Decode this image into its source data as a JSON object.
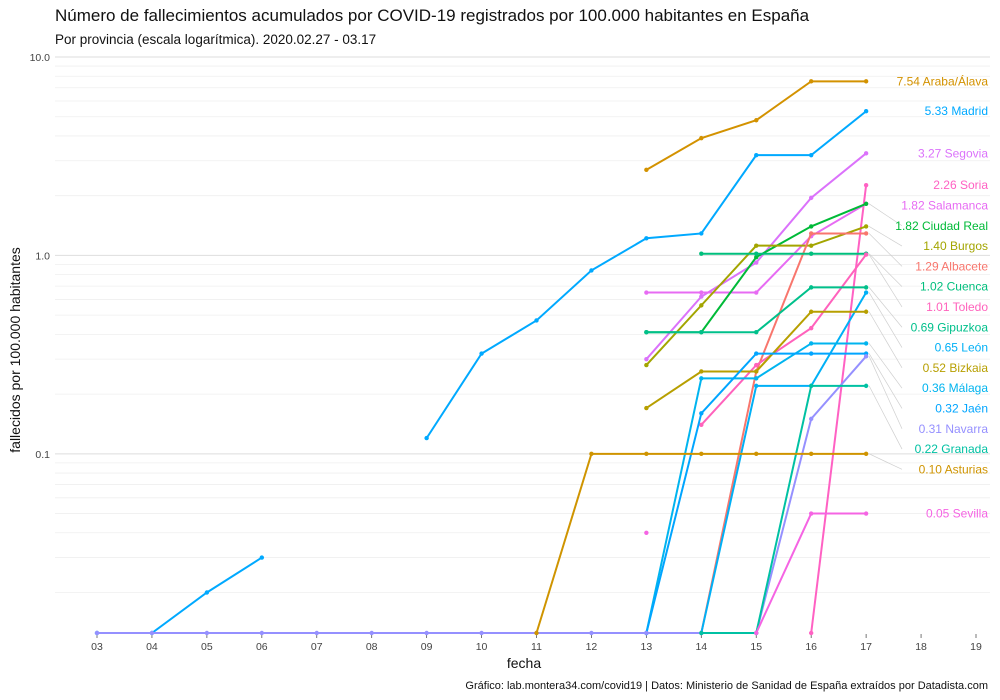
{
  "chart_data": {
    "type": "line",
    "title": "Número de fallecimientos acumulados por COVID-19 registrados por 100.000 habitantes en España",
    "subtitle": "Por provincia (escala logarítmica). 2020.02.27 - 03.17",
    "xlabel": "fecha",
    "ylabel": "fallecidos por 100.000 habitantes",
    "caption": "Gráfico: lab.montera34.com/covid19 | Datos: Ministerio de Sanidad de España extraídos por Datadista.com",
    "y_scale": "log",
    "ylim": [
      0.0125,
      10
    ],
    "xlim": [
      "03",
      "19"
    ],
    "x_ticks": [
      "03",
      "04",
      "05",
      "06",
      "07",
      "08",
      "09",
      "10",
      "11",
      "12",
      "13",
      "14",
      "15",
      "16",
      "17",
      "18",
      "19"
    ],
    "y_ticks": [
      {
        "value": 0.1,
        "label": "0.1"
      },
      {
        "value": 1,
        "label": "1.0"
      },
      {
        "value": 10,
        "label": "10.0"
      }
    ],
    "grid": true,
    "legend": "direct labels at right end of lines",
    "series": [
      {
        "name": "Araba/Álava",
        "color": "#D39200",
        "end_label": "7.54 Araba/Álava",
        "points": [
          [
            "13",
            2.7
          ],
          [
            "14",
            3.9
          ],
          [
            "15",
            4.8
          ],
          [
            "16",
            7.54
          ],
          [
            "17",
            7.54
          ]
        ]
      },
      {
        "name": "Madrid",
        "color": "#00A9FF",
        "end_label": "5.33 Madrid",
        "points": [
          [
            "03",
            0.0125
          ],
          [
            "04",
            0.0125
          ],
          [
            "05",
            0.02
          ],
          [
            "06",
            0.03
          ],
          [
            "09",
            0.12
          ],
          [
            "10",
            0.32
          ],
          [
            "11",
            0.47
          ],
          [
            "12",
            0.84
          ],
          [
            "13",
            1.22
          ],
          [
            "14",
            1.29
          ],
          [
            "15",
            3.2
          ],
          [
            "16",
            3.2
          ],
          [
            "17",
            5.33
          ]
        ]
      },
      {
        "name": "Segovia",
        "color": "#DB72FB",
        "end_label": "3.27 Segovia",
        "points": [
          [
            "13",
            0.3
          ],
          [
            "14",
            0.62
          ],
          [
            "15",
            0.92
          ],
          [
            "16",
            1.95
          ],
          [
            "17",
            3.27
          ]
        ]
      },
      {
        "name": "Soria",
        "color": "#FF61C3",
        "end_label": "2.26 Soria",
        "points": [
          [
            "16",
            0.0125
          ],
          [
            "17",
            2.26
          ]
        ]
      },
      {
        "name": "Salamanca",
        "color": "#E76BF3",
        "end_label": "1.82 Salamanca",
        "points": [
          [
            "13",
            0.65
          ],
          [
            "14",
            0.65
          ],
          [
            "15",
            0.65
          ],
          [
            "16",
            1.25
          ],
          [
            "17",
            1.82
          ]
        ]
      },
      {
        "name": "Ciudad Real",
        "color": "#00BA38",
        "end_label": "1.82 Ciudad Real",
        "points": [
          [
            "13",
            0.41
          ],
          [
            "14",
            0.41
          ],
          [
            "15",
            0.98
          ],
          [
            "16",
            1.4
          ],
          [
            "17",
            1.82
          ]
        ]
      },
      {
        "name": "Burgos",
        "color": "#A3A500",
        "end_label": "1.40 Burgos",
        "points": [
          [
            "13",
            0.28
          ],
          [
            "14",
            0.56
          ],
          [
            "15",
            1.12
          ],
          [
            "16",
            1.12
          ],
          [
            "17",
            1.4
          ]
        ]
      },
      {
        "name": "Albacete",
        "color": "#F8766D",
        "end_label": "1.29 Albacete",
        "points": [
          [
            "13",
            0.0125
          ],
          [
            "14",
            0.0125
          ],
          [
            "15",
            0.26
          ],
          [
            "16",
            1.29
          ],
          [
            "17",
            1.29
          ]
        ]
      },
      {
        "name": "Cuenca",
        "color": "#00BF7D",
        "end_label": "1.02 Cuenca",
        "points": [
          [
            "14",
            1.02
          ],
          [
            "15",
            1.02
          ],
          [
            "16",
            1.02
          ],
          [
            "17",
            1.02
          ]
        ]
      },
      {
        "name": "Toledo",
        "color": "#FF62BC",
        "end_label": "1.01 Toledo",
        "points": [
          [
            "14",
            0.14
          ],
          [
            "15",
            0.28
          ],
          [
            "16",
            0.43
          ],
          [
            "17",
            1.01
          ]
        ]
      },
      {
        "name": "Gipuzkoa",
        "color": "#00C08B",
        "end_label": "0.69 Gipuzkoa",
        "points": [
          [
            "13",
            0.41
          ],
          [
            "14",
            0.41
          ],
          [
            "15",
            0.41
          ],
          [
            "16",
            0.69
          ],
          [
            "17",
            0.69
          ]
        ]
      },
      {
        "name": "León",
        "color": "#00B0F6",
        "end_label": "0.65 León",
        "points": [
          [
            "13",
            0.0125
          ],
          [
            "14",
            0.0125
          ],
          [
            "15",
            0.22
          ],
          [
            "16",
            0.22
          ],
          [
            "17",
            0.65
          ]
        ]
      },
      {
        "name": "Bizkaia",
        "color": "#B79F00",
        "end_label": "0.52 Bizkaia",
        "points": [
          [
            "13",
            0.17
          ],
          [
            "14",
            0.26
          ],
          [
            "15",
            0.26
          ],
          [
            "16",
            0.52
          ],
          [
            "17",
            0.52
          ]
        ]
      },
      {
        "name": "Málaga",
        "color": "#00B4EF",
        "end_label": "0.36 Málaga",
        "points": [
          [
            "13",
            0.0125
          ],
          [
            "14",
            0.24
          ],
          [
            "15",
            0.24
          ],
          [
            "16",
            0.36
          ],
          [
            "17",
            0.36
          ]
        ]
      },
      {
        "name": "Jaén",
        "color": "#00A5FF",
        "end_label": "0.32 Jaén",
        "points": [
          [
            "13",
            0.0125
          ],
          [
            "14",
            0.16
          ],
          [
            "15",
            0.32
          ],
          [
            "16",
            0.32
          ],
          [
            "17",
            0.32
          ]
        ]
      },
      {
        "name": "Navarra",
        "color": "#9590FF",
        "end_label": "0.31 Navarra",
        "points": [
          [
            "03",
            0.0125
          ],
          [
            "04",
            0.0125
          ],
          [
            "05",
            0.0125
          ],
          [
            "06",
            0.0125
          ],
          [
            "07",
            0.0125
          ],
          [
            "08",
            0.0125
          ],
          [
            "09",
            0.0125
          ],
          [
            "10",
            0.0125
          ],
          [
            "11",
            0.0125
          ],
          [
            "12",
            0.0125
          ],
          [
            "13",
            0.0125
          ],
          [
            "14",
            0.0125
          ],
          [
            "15",
            0.0125
          ],
          [
            "16",
            0.15
          ],
          [
            "17",
            0.31
          ]
        ]
      },
      {
        "name": "Granada",
        "color": "#00C1A3",
        "end_label": "0.22 Granada",
        "points": [
          [
            "14",
            0.0125
          ],
          [
            "15",
            0.0125
          ],
          [
            "16",
            0.22
          ],
          [
            "17",
            0.22
          ]
        ]
      },
      {
        "name": "Asturias",
        "color": "#CF9400",
        "end_label": "0.10 Asturias",
        "points": [
          [
            "11",
            0.0125
          ],
          [
            "12",
            0.1
          ],
          [
            "13",
            0.1
          ],
          [
            "14",
            0.1
          ],
          [
            "15",
            0.1
          ],
          [
            "16",
            0.1
          ],
          [
            "17",
            0.1
          ]
        ]
      },
      {
        "name": "Sevilla",
        "color": "#F564E3",
        "end_label": "0.05 Sevilla",
        "points": [
          [
            "13",
            0.04
          ],
          [
            "15",
            0.0125
          ],
          [
            "16",
            0.05
          ],
          [
            "17",
            0.05
          ]
        ]
      }
    ]
  }
}
